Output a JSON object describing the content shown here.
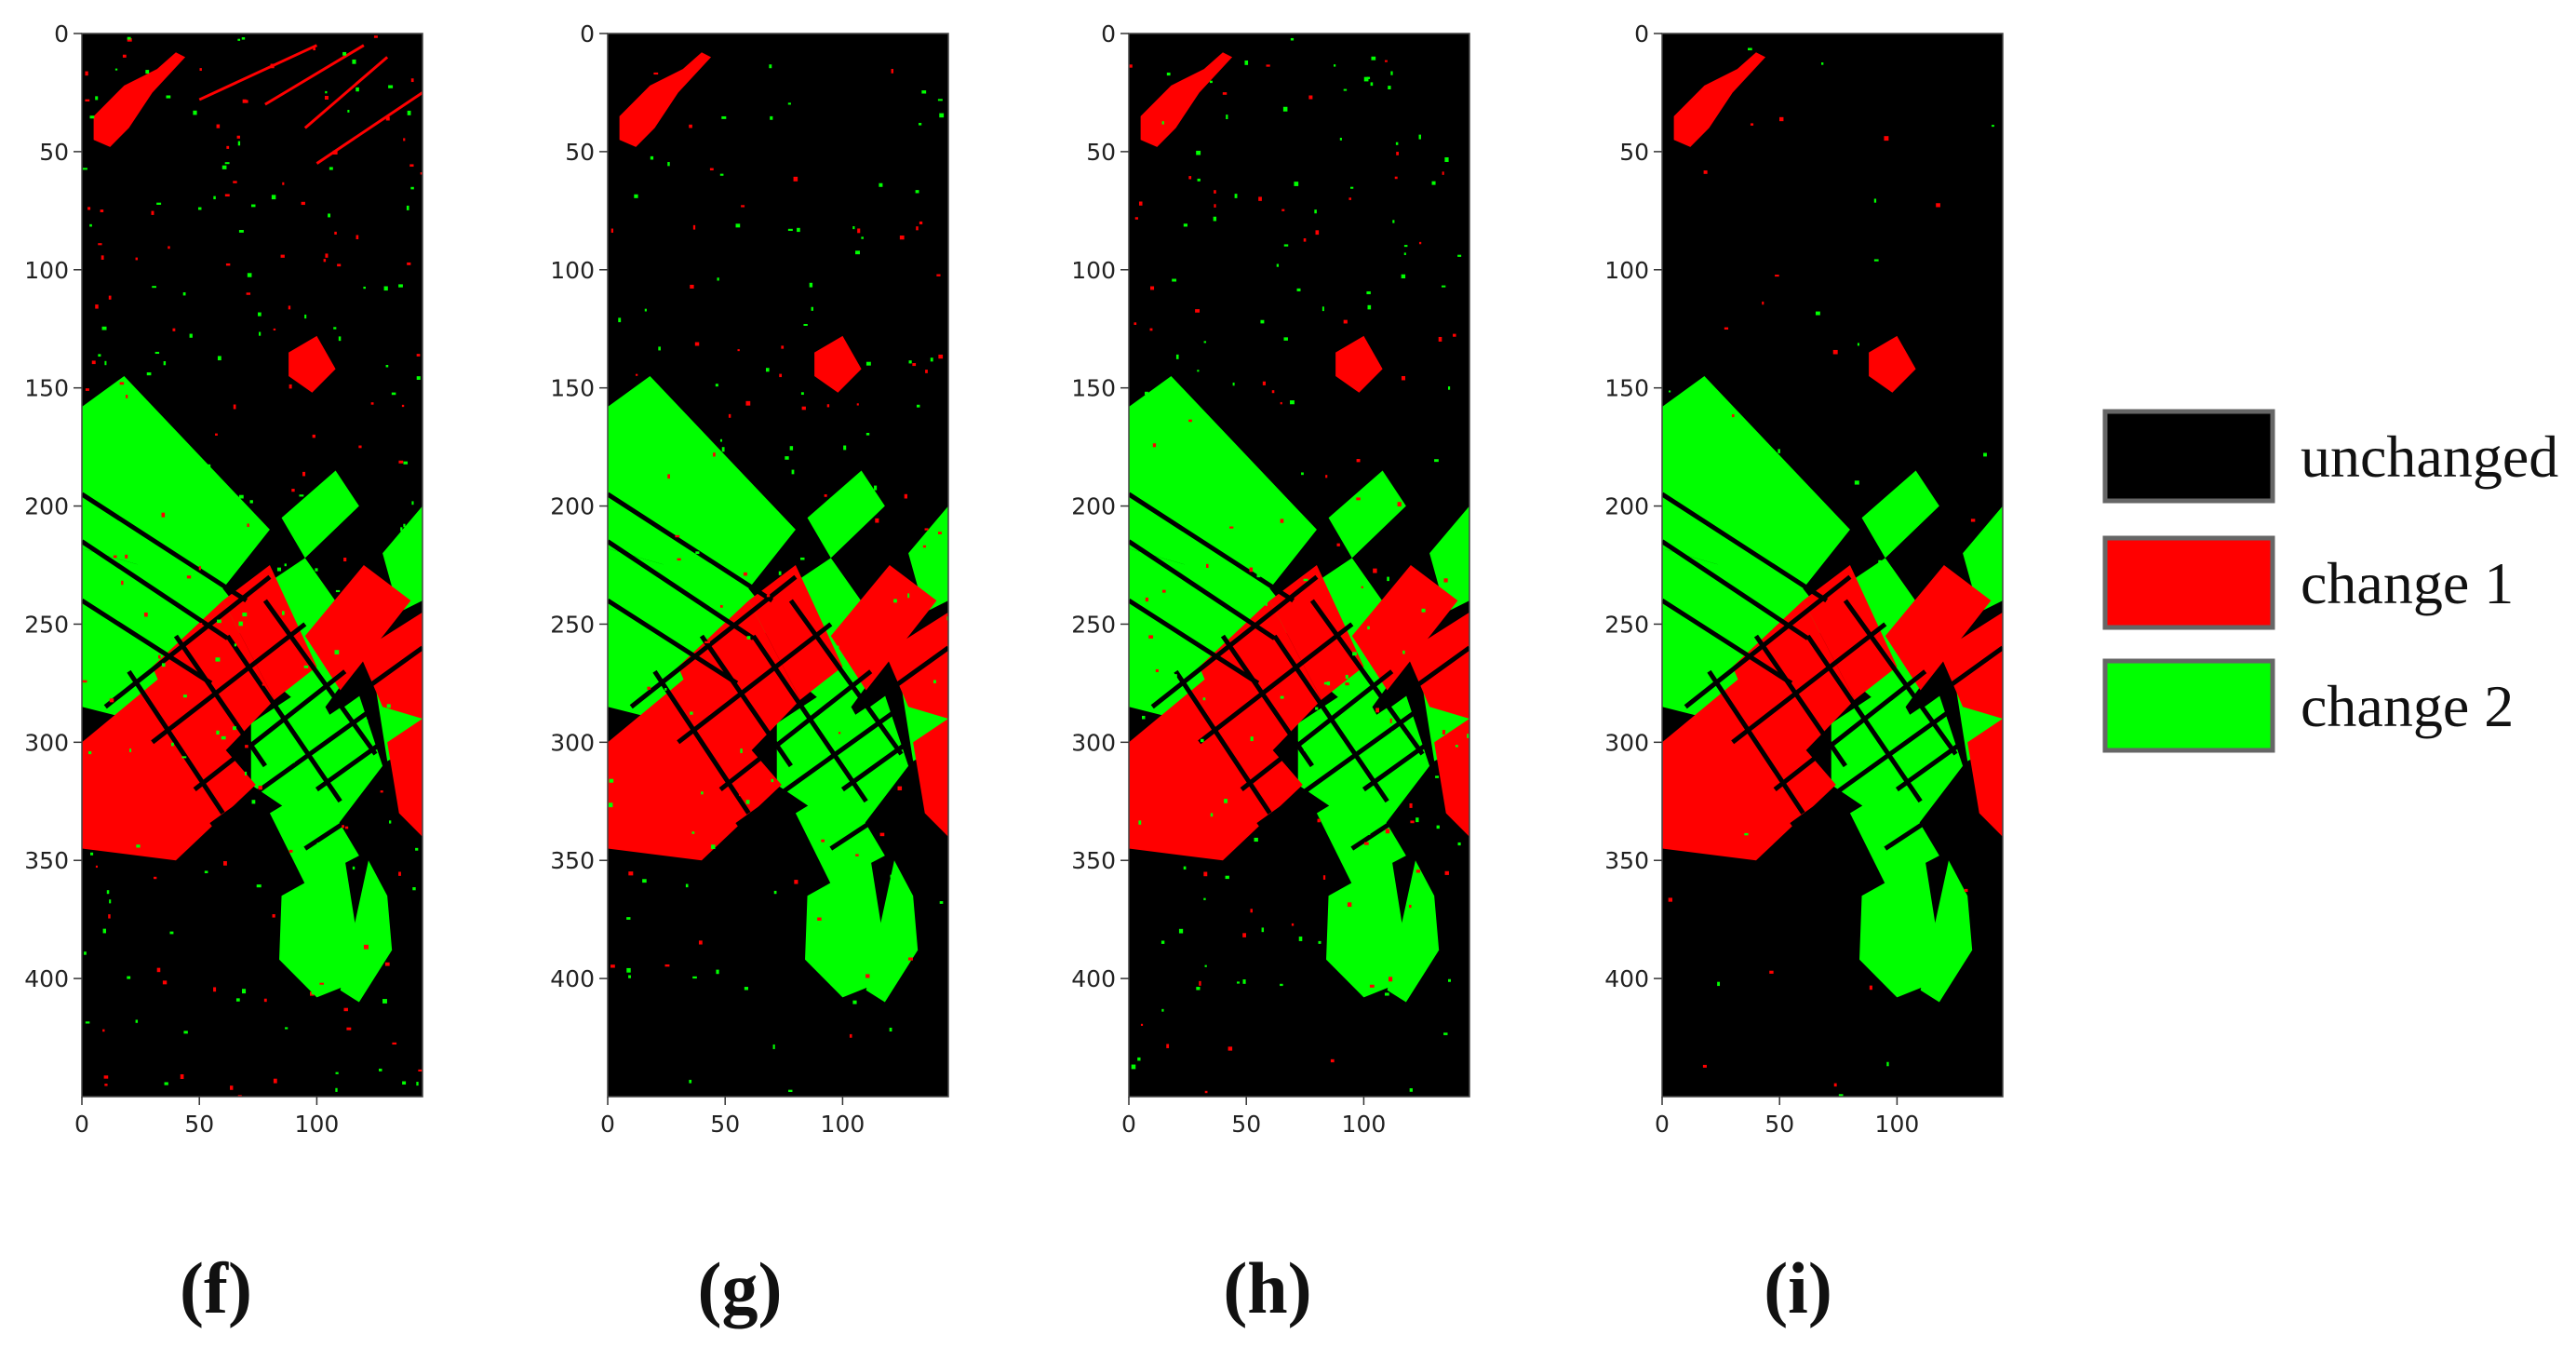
{
  "colors": {
    "unchanged": "#000000",
    "change_1": "#ff0000",
    "change_2": "#00ff00",
    "legend_border": "#666666"
  },
  "legend": {
    "items": [
      {
        "label": "unchanged",
        "color": "#000000"
      },
      {
        "label": "change 1",
        "color": "#ff0000"
      },
      {
        "label": "change 2",
        "color": "#00ff00"
      }
    ]
  },
  "chart_data": [
    {
      "type": "heatmap",
      "caption": "(f)",
      "xlim": [
        0,
        145
      ],
      "ylim": [
        450,
        0
      ],
      "xticks": [
        0,
        50,
        100
      ],
      "yticks": [
        0,
        50,
        100,
        150,
        200,
        250,
        300,
        350,
        400
      ],
      "classes": [
        "unchanged",
        "change 1",
        "change 2"
      ],
      "noise_level": 1.0
    },
    {
      "type": "heatmap",
      "caption": "(g)",
      "xlim": [
        0,
        145
      ],
      "ylim": [
        450,
        0
      ],
      "xticks": [
        0,
        50,
        100
      ],
      "yticks": [
        0,
        50,
        100,
        150,
        200,
        250,
        300,
        350,
        400
      ],
      "classes": [
        "unchanged",
        "change 1",
        "change 2"
      ],
      "noise_level": 0.6
    },
    {
      "type": "heatmap",
      "caption": "(h)",
      "xlim": [
        0,
        145
      ],
      "ylim": [
        450,
        0
      ],
      "xticks": [
        0,
        50,
        100
      ],
      "yticks": [
        0,
        50,
        100,
        150,
        200,
        250,
        300,
        350,
        400
      ],
      "classes": [
        "unchanged",
        "change 1",
        "change 2"
      ],
      "noise_level": 0.8
    },
    {
      "type": "heatmap",
      "caption": "(i)",
      "xlim": [
        0,
        145
      ],
      "ylim": [
        450,
        0
      ],
      "xticks": [
        0,
        50,
        100
      ],
      "yticks": [
        0,
        50,
        100,
        150,
        200,
        250,
        300,
        350,
        400
      ],
      "classes": [
        "unchanged",
        "change 1",
        "change 2"
      ],
      "noise_level": 0.15
    }
  ]
}
